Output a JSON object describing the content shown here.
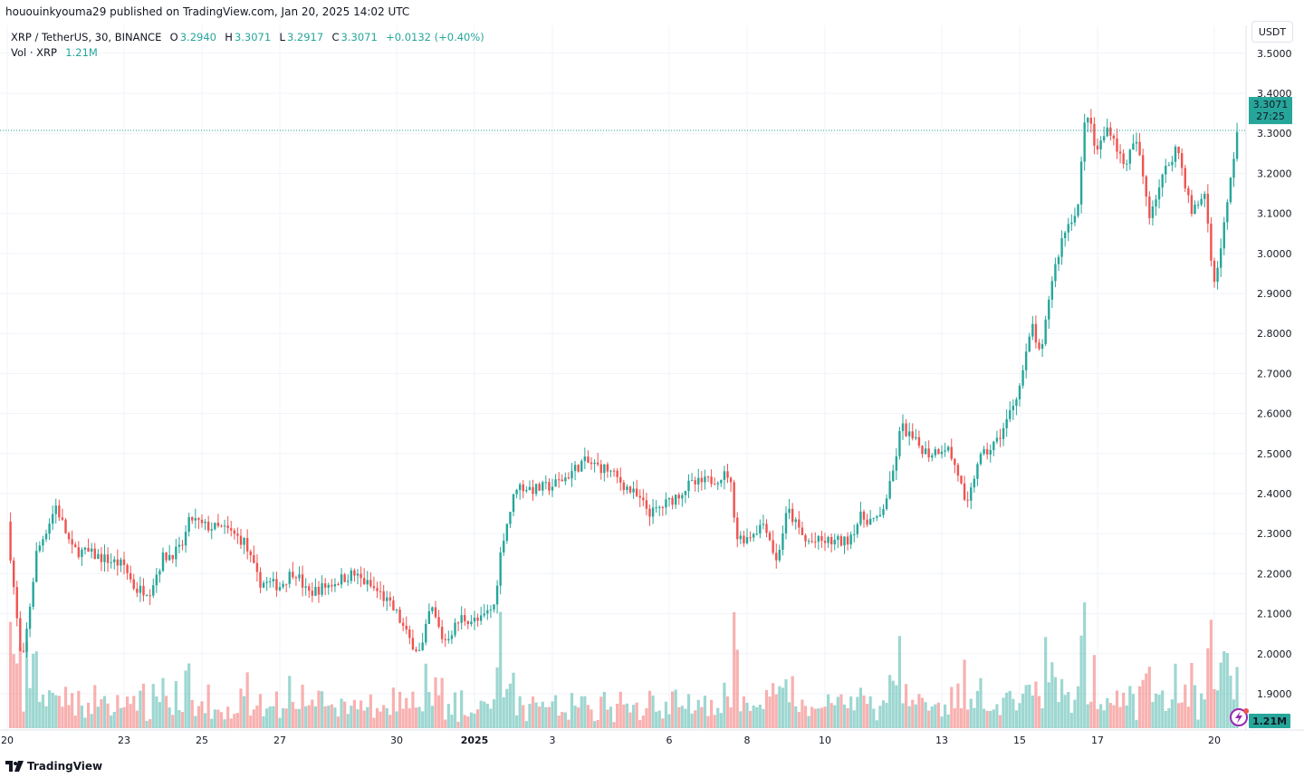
{
  "publish_line": "hououinkyouma29 published on TradingView.com, Jan 20, 2025 14:02 UTC",
  "legend": {
    "symbol": "XRP / TetherUS, 30, BINANCE",
    "open_label": "O",
    "open": "3.2940",
    "high_label": "H",
    "high": "3.3071",
    "low_label": "L",
    "low": "3.2917",
    "close_label": "C",
    "close": "3.3071",
    "change": "+0.0132 (+0.40%)",
    "volume_label": "Vol · XRP",
    "volume": "1.21M"
  },
  "currency_button": "USDT",
  "last_price": {
    "price": "3.3071",
    "countdown": "27:25"
  },
  "volume_badge": "1.21M",
  "footer_brand": "TradingView",
  "colors": {
    "up": "#26a69a",
    "down": "#ef5350",
    "grid": "#f0f3fa"
  },
  "icons": [
    "lightning-icon",
    "tradingview-logo-icon"
  ],
  "chart_data": {
    "type": "candlestick",
    "interval": "30",
    "y_axis": {
      "ticks": [
        "1.9000",
        "2.0000",
        "2.1000",
        "2.2000",
        "2.3000",
        "2.4000",
        "2.5000",
        "2.6000",
        "2.7000",
        "2.8000",
        "2.9000",
        "3.0000",
        "3.1000",
        "3.2000",
        "3.3000",
        "3.4000",
        "3.5000"
      ],
      "range": [
        1.87,
        3.51
      ],
      "position": "right"
    },
    "x_axis": {
      "ticks": [
        {
          "label": "20",
          "date": "2024-12-20"
        },
        {
          "label": "23",
          "date": "2024-12-23"
        },
        {
          "label": "25",
          "date": "2024-12-25"
        },
        {
          "label": "27",
          "date": "2024-12-27"
        },
        {
          "label": "30",
          "date": "2024-12-30"
        },
        {
          "label": "2025",
          "date": "2025-01-01"
        },
        {
          "label": "3",
          "date": "2025-01-03"
        },
        {
          "label": "6",
          "date": "2025-01-06"
        },
        {
          "label": "8",
          "date": "2025-01-08"
        },
        {
          "label": "10",
          "date": "2025-01-10"
        },
        {
          "label": "13",
          "date": "2025-01-13"
        },
        {
          "label": "15",
          "date": "2025-01-15"
        },
        {
          "label": "17",
          "date": "2025-01-17"
        },
        {
          "label": "20",
          "date": "2025-01-20"
        }
      ]
    },
    "grid": true,
    "approx_close_path": [
      [
        "2024-12-20T00:00",
        2.33
      ],
      [
        "2024-12-20T09:00",
        1.96
      ],
      [
        "2024-12-20T18:00",
        2.25
      ],
      [
        "2024-12-21T06:00",
        2.37
      ],
      [
        "2024-12-21T16:00",
        2.26
      ],
      [
        "2024-12-22T03:00",
        2.25
      ],
      [
        "2024-12-23T00:00",
        2.22
      ],
      [
        "2024-12-23T07:00",
        2.16
      ],
      [
        "2024-12-23T16:00",
        2.16
      ],
      [
        "2024-12-24T00:00",
        2.24
      ],
      [
        "2024-12-24T11:00",
        2.26
      ],
      [
        "2024-12-24T17:00",
        2.34
      ],
      [
        "2024-12-25T00:00",
        2.32
      ],
      [
        "2024-12-25T15:00",
        2.31
      ],
      [
        "2024-12-26T02:00",
        2.28
      ],
      [
        "2024-12-26T11:00",
        2.18
      ],
      [
        "2024-12-27T00:00",
        2.17
      ],
      [
        "2024-12-27T09:00",
        2.21
      ],
      [
        "2024-12-27T17:00",
        2.15
      ],
      [
        "2024-12-28T05:00",
        2.17
      ],
      [
        "2024-12-28T21:00",
        2.2
      ],
      [
        "2024-12-29T14:00",
        2.15
      ],
      [
        "2024-12-30T00:00",
        2.1
      ],
      [
        "2024-12-30T07:00",
        2.04
      ],
      [
        "2024-12-30T15:00",
        2.0
      ],
      [
        "2024-12-30T21:00",
        2.12
      ],
      [
        "2024-12-31T05:00",
        2.03
      ],
      [
        "2024-12-31T16:00",
        2.09
      ],
      [
        "2025-01-01T03:00",
        2.08
      ],
      [
        "2025-01-01T12:00",
        2.12
      ],
      [
        "2025-01-01T17:00",
        2.28
      ],
      [
        "2025-01-02T02:00",
        2.42
      ],
      [
        "2025-01-02T13:00",
        2.41
      ],
      [
        "2025-01-03T00:00",
        2.42
      ],
      [
        "2025-01-03T08:00",
        2.44
      ],
      [
        "2025-01-03T19:00",
        2.48
      ],
      [
        "2025-01-04T10:00",
        2.46
      ],
      [
        "2025-01-05T02:00",
        2.4
      ],
      [
        "2025-01-05T13:00",
        2.35
      ],
      [
        "2025-01-06T00:00",
        2.38
      ],
      [
        "2025-01-06T12:00",
        2.42
      ],
      [
        "2025-01-06T23:00",
        2.43
      ],
      [
        "2025-01-07T13:00",
        2.45
      ],
      [
        "2025-01-07T18:00",
        2.29
      ],
      [
        "2025-01-08T00:00",
        2.29
      ],
      [
        "2025-01-08T11:00",
        2.33
      ],
      [
        "2025-01-08T18:00",
        2.23
      ],
      [
        "2025-01-09T01:00",
        2.36
      ],
      [
        "2025-01-09T12:00",
        2.28
      ],
      [
        "2025-01-10T00:00",
        2.28
      ],
      [
        "2025-01-10T13:00",
        2.28
      ],
      [
        "2025-01-10T22:00",
        2.34
      ],
      [
        "2025-01-11T09:00",
        2.33
      ],
      [
        "2025-01-11T17:00",
        2.43
      ],
      [
        "2025-01-11T23:00",
        2.57
      ],
      [
        "2025-01-12T07:00",
        2.53
      ],
      [
        "2025-01-12T16:00",
        2.5
      ],
      [
        "2025-01-13T03:00",
        2.52
      ],
      [
        "2025-01-13T11:00",
        2.44
      ],
      [
        "2025-01-13T15:00",
        2.35
      ],
      [
        "2025-01-13T22:00",
        2.48
      ],
      [
        "2025-01-14T10:00",
        2.53
      ],
      [
        "2025-01-14T16:00",
        2.58
      ],
      [
        "2025-01-15T00:00",
        2.67
      ],
      [
        "2025-01-15T08:00",
        2.82
      ],
      [
        "2025-01-15T13:00",
        2.73
      ],
      [
        "2025-01-15T19:00",
        2.92
      ],
      [
        "2025-01-16T03:00",
        3.05
      ],
      [
        "2025-01-16T12:00",
        3.12
      ],
      [
        "2025-01-16T17:00",
        3.37
      ],
      [
        "2025-01-16T23:00",
        3.25
      ],
      [
        "2025-01-17T07:00",
        3.32
      ],
      [
        "2025-01-17T16:00",
        3.22
      ],
      [
        "2025-01-18T00:00",
        3.28
      ],
      [
        "2025-01-18T08:00",
        3.1
      ],
      [
        "2025-01-18T17:00",
        3.2
      ],
      [
        "2025-01-19T01:00",
        3.27
      ],
      [
        "2025-01-19T10:00",
        3.1
      ],
      [
        "2025-01-19T18:00",
        3.15
      ],
      [
        "2025-01-20T00:00",
        2.92
      ],
      [
        "2025-01-20T08:00",
        3.12
      ],
      [
        "2025-01-20T14:00",
        3.3071
      ]
    ],
    "last_price": 3.3071
  }
}
